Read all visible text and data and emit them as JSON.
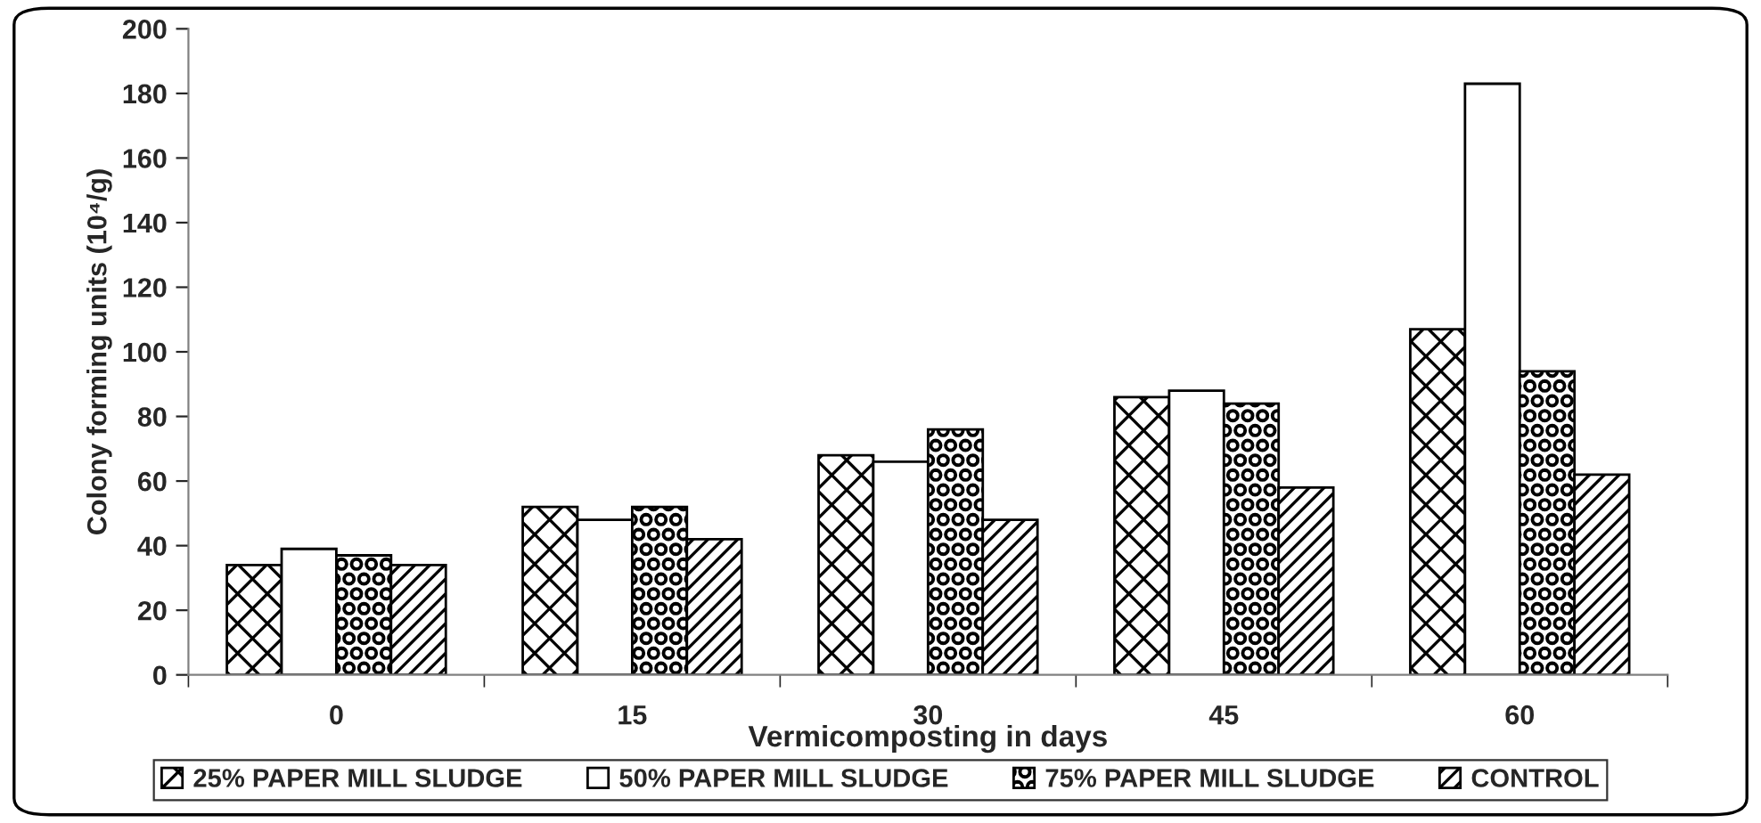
{
  "chart_data": {
    "type": "bar",
    "xlabel": "Vermicomposting in days",
    "ylabel": "Colony forming units (10⁴/g)",
    "categories": [
      "0",
      "15",
      "30",
      "45",
      "60"
    ],
    "series": [
      {
        "name": "25% PAPER MILL SLUDGE",
        "color": "#000000",
        "values": [
          34,
          52,
          68,
          86,
          107
        ]
      },
      {
        "name": "50% PAPER MILL SLUDGE",
        "color": "#ffffff",
        "values": [
          39,
          48,
          66,
          88,
          183
        ]
      },
      {
        "name": "75% PAPER MILL SLUDGE",
        "color": "#000000",
        "values": [
          37,
          52,
          76,
          84,
          94
        ]
      },
      {
        "name": "CONTROL",
        "color": "#000000",
        "values": [
          34,
          42,
          48,
          58,
          62
        ]
      }
    ],
    "ylim": [
      0,
      200
    ],
    "yticks": [
      0,
      20,
      40,
      60,
      80,
      100,
      120,
      140,
      160,
      180,
      200
    ],
    "grid": false,
    "legend": "bottom"
  }
}
